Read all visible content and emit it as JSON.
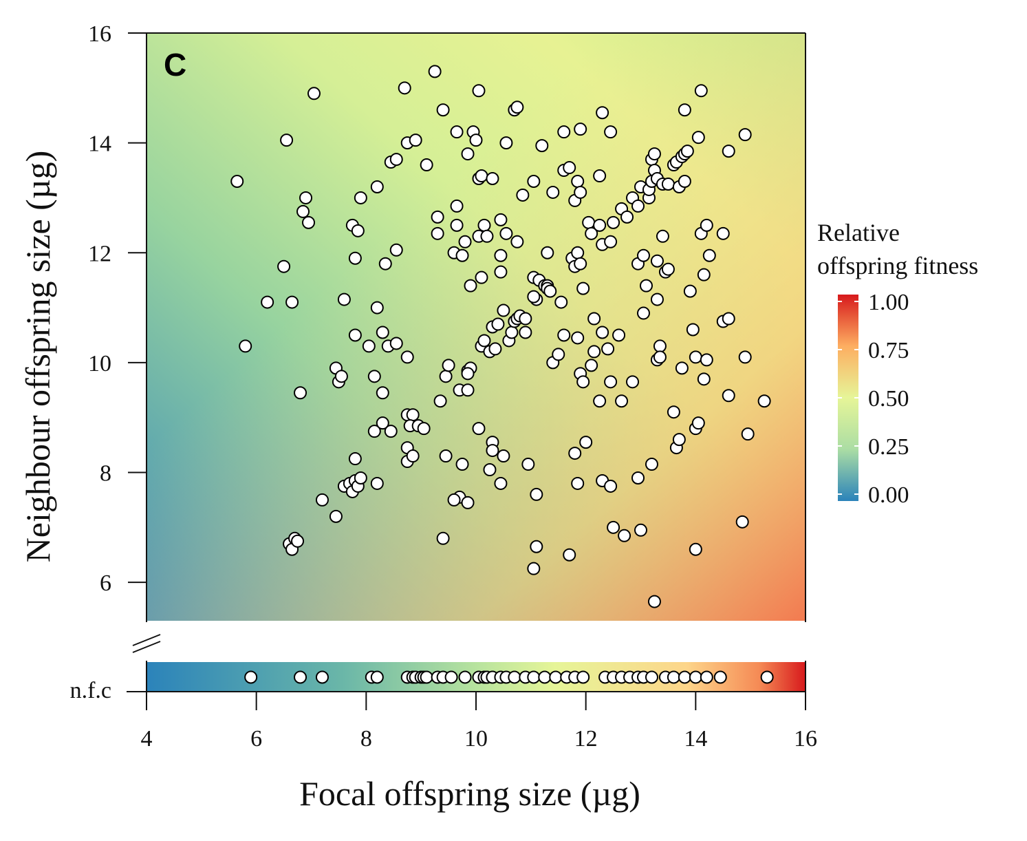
{
  "chart_data": {
    "type": "scatter",
    "panel_label": "C",
    "xlabel": "Focal offspring size (µg)",
    "ylabel": "Neighbour offspring size (µg)",
    "xlim": [
      4,
      16
    ],
    "ylim": [
      5.3,
      16
    ],
    "x_ticks": [
      "4",
      "6",
      "8",
      "10",
      "12",
      "14",
      "16"
    ],
    "y_ticks": [
      "6",
      "8",
      "10",
      "12",
      "14",
      "16"
    ],
    "nfc_label": "n.f.c",
    "legend": {
      "title_line1": "Relative",
      "title_line2": "offspring fitness",
      "ticks": [
        "1.00",
        "0.75",
        "0.50",
        "0.25",
        "0.00"
      ],
      "placement": "right",
      "colors": [
        "#2b83ba",
        "#abdda4",
        "#e6f598",
        "#fdae61",
        "#d7191c"
      ]
    },
    "grid": false,
    "points": [
      [
        5.65,
        13.3
      ],
      [
        5.8,
        10.3
      ],
      [
        6.2,
        11.1
      ],
      [
        6.5,
        11.75
      ],
      [
        6.55,
        14.05
      ],
      [
        6.65,
        11.1
      ],
      [
        6.8,
        9.45
      ],
      [
        6.85,
        12.75
      ],
      [
        6.9,
        13.0
      ],
      [
        6.95,
        12.55
      ],
      [
        7.05,
        14.9
      ],
      [
        7.2,
        7.5
      ],
      [
        6.6,
        6.7
      ],
      [
        6.65,
        6.6
      ],
      [
        6.7,
        6.8
      ],
      [
        6.75,
        6.75
      ],
      [
        7.45,
        9.9
      ],
      [
        7.5,
        9.65
      ],
      [
        7.55,
        9.75
      ],
      [
        7.6,
        11.15
      ],
      [
        7.45,
        7.2
      ],
      [
        7.6,
        7.75
      ],
      [
        7.7,
        7.8
      ],
      [
        7.75,
        7.65
      ],
      [
        7.8,
        7.85
      ],
      [
        7.85,
        7.75
      ],
      [
        7.9,
        7.9
      ],
      [
        7.8,
        8.25
      ],
      [
        7.75,
        12.5
      ],
      [
        7.8,
        11.9
      ],
      [
        7.85,
        12.4
      ],
      [
        7.9,
        13.0
      ],
      [
        7.8,
        10.5
      ],
      [
        8.05,
        10.3
      ],
      [
        8.15,
        9.75
      ],
      [
        8.2,
        11.0
      ],
      [
        8.2,
        13.2
      ],
      [
        8.3,
        10.55
      ],
      [
        8.3,
        9.45
      ],
      [
        8.35,
        11.8
      ],
      [
        8.4,
        10.3
      ],
      [
        8.45,
        13.65
      ],
      [
        8.55,
        13.7
      ],
      [
        8.55,
        12.05
      ],
      [
        8.55,
        10.35
      ],
      [
        8.15,
        8.75
      ],
      [
        8.3,
        8.9
      ],
      [
        8.45,
        8.75
      ],
      [
        8.2,
        7.8
      ],
      [
        8.7,
        15.0
      ],
      [
        8.75,
        14.0
      ],
      [
        8.9,
        14.05
      ],
      [
        8.75,
        10.1
      ],
      [
        8.75,
        9.05
      ],
      [
        8.85,
        9.05
      ],
      [
        8.8,
        8.85
      ],
      [
        8.95,
        8.85
      ],
      [
        9.05,
        8.8
      ],
      [
        8.75,
        8.45
      ],
      [
        8.75,
        8.2
      ],
      [
        8.85,
        8.3
      ],
      [
        9.1,
        13.6
      ],
      [
        9.25,
        15.3
      ],
      [
        9.3,
        12.65
      ],
      [
        9.3,
        12.35
      ],
      [
        9.35,
        9.3
      ],
      [
        9.4,
        14.6
      ],
      [
        9.45,
        9.75
      ],
      [
        9.5,
        9.95
      ],
      [
        9.45,
        8.3
      ],
      [
        9.4,
        6.8
      ],
      [
        9.6,
        12.0
      ],
      [
        9.65,
        12.5
      ],
      [
        9.65,
        12.85
      ],
      [
        9.65,
        14.2
      ],
      [
        9.75,
        11.95
      ],
      [
        9.8,
        12.2
      ],
      [
        9.85,
        9.85
      ],
      [
        9.9,
        9.9
      ],
      [
        9.7,
        9.5
      ],
      [
        9.85,
        9.5
      ],
      [
        9.85,
        9.8
      ],
      [
        9.75,
        8.15
      ],
      [
        9.7,
        7.55
      ],
      [
        9.6,
        7.5
      ],
      [
        9.85,
        7.45
      ],
      [
        9.85,
        13.8
      ],
      [
        9.95,
        14.2
      ],
      [
        10.0,
        14.05
      ],
      [
        10.05,
        14.95
      ],
      [
        10.05,
        13.35
      ],
      [
        10.1,
        13.4
      ],
      [
        10.05,
        12.3
      ],
      [
        9.9,
        11.4
      ],
      [
        10.1,
        11.55
      ],
      [
        10.05,
        8.8
      ],
      [
        10.1,
        10.3
      ],
      [
        10.15,
        10.4
      ],
      [
        10.15,
        12.5
      ],
      [
        10.2,
        12.3
      ],
      [
        10.25,
        10.2
      ],
      [
        10.3,
        10.65
      ],
      [
        10.35,
        10.25
      ],
      [
        10.4,
        10.7
      ],
      [
        10.3,
        13.35
      ],
      [
        10.25,
        8.05
      ],
      [
        10.3,
        8.55
      ],
      [
        10.3,
        8.4
      ],
      [
        10.45,
        7.8
      ],
      [
        10.45,
        12.6
      ],
      [
        10.45,
        11.95
      ],
      [
        10.45,
        11.65
      ],
      [
        10.5,
        10.95
      ],
      [
        10.55,
        12.35
      ],
      [
        10.6,
        10.4
      ],
      [
        10.65,
        10.55
      ],
      [
        10.7,
        10.75
      ],
      [
        10.75,
        10.8
      ],
      [
        10.55,
        14.0
      ],
      [
        10.5,
        8.3
      ],
      [
        10.7,
        14.6
      ],
      [
        10.75,
        14.65
      ],
      [
        10.75,
        12.2
      ],
      [
        10.8,
        10.85
      ],
      [
        10.9,
        10.8
      ],
      [
        10.9,
        10.55
      ],
      [
        10.85,
        13.05
      ],
      [
        10.95,
        8.15
      ],
      [
        11.05,
        13.3
      ],
      [
        11.05,
        11.55
      ],
      [
        11.1,
        11.15
      ],
      [
        11.05,
        11.2
      ],
      [
        11.15,
        11.5
      ],
      [
        11.25,
        11.4
      ],
      [
        11.3,
        11.4
      ],
      [
        11.3,
        11.35
      ],
      [
        11.35,
        11.3
      ],
      [
        11.3,
        12.0
      ],
      [
        11.1,
        7.6
      ],
      [
        11.05,
        6.25
      ],
      [
        11.1,
        6.65
      ],
      [
        11.2,
        13.95
      ],
      [
        11.4,
        13.1
      ],
      [
        11.4,
        10.0
      ],
      [
        11.5,
        10.15
      ],
      [
        11.6,
        14.2
      ],
      [
        11.6,
        13.5
      ],
      [
        11.7,
        13.55
      ],
      [
        11.75,
        11.9
      ],
      [
        11.8,
        11.75
      ],
      [
        11.55,
        11.1
      ],
      [
        11.6,
        10.5
      ],
      [
        11.7,
        6.5
      ],
      [
        11.8,
        8.35
      ],
      [
        11.8,
        12.95
      ],
      [
        11.85,
        13.3
      ],
      [
        11.85,
        12.0
      ],
      [
        11.9,
        14.25
      ],
      [
        11.9,
        13.1
      ],
      [
        11.9,
        11.8
      ],
      [
        11.95,
        11.35
      ],
      [
        11.85,
        10.45
      ],
      [
        11.9,
        9.8
      ],
      [
        11.95,
        9.65
      ],
      [
        12.0,
        8.55
      ],
      [
        11.85,
        7.8
      ],
      [
        12.05,
        12.55
      ],
      [
        12.1,
        12.35
      ],
      [
        12.15,
        10.8
      ],
      [
        12.1,
        9.95
      ],
      [
        12.15,
        10.2
      ],
      [
        12.25,
        12.5
      ],
      [
        12.25,
        13.4
      ],
      [
        12.25,
        9.3
      ],
      [
        12.3,
        14.55
      ],
      [
        12.3,
        12.15
      ],
      [
        12.3,
        10.55
      ],
      [
        12.3,
        7.85
      ],
      [
        12.45,
        14.2
      ],
      [
        12.4,
        10.25
      ],
      [
        12.45,
        9.65
      ],
      [
        12.45,
        7.75
      ],
      [
        12.45,
        12.2
      ],
      [
        12.5,
        12.55
      ],
      [
        12.5,
        7.0
      ],
      [
        12.6,
        10.5
      ],
      [
        12.65,
        9.3
      ],
      [
        12.7,
        6.85
      ],
      [
        12.65,
        12.8
      ],
      [
        12.75,
        12.65
      ],
      [
        12.85,
        13.0
      ],
      [
        12.85,
        9.65
      ],
      [
        12.95,
        12.85
      ],
      [
        12.95,
        7.9
      ],
      [
        12.95,
        11.8
      ],
      [
        13.0,
        13.2
      ],
      [
        13.0,
        6.95
      ],
      [
        13.05,
        11.95
      ],
      [
        13.05,
        10.9
      ],
      [
        13.1,
        11.4
      ],
      [
        13.15,
        13.0
      ],
      [
        13.15,
        13.15
      ],
      [
        13.2,
        13.3
      ],
      [
        13.2,
        13.7
      ],
      [
        13.25,
        13.5
      ],
      [
        13.3,
        13.35
      ],
      [
        13.25,
        13.8
      ],
      [
        13.3,
        11.85
      ],
      [
        13.3,
        11.15
      ],
      [
        13.3,
        10.05
      ],
      [
        13.35,
        10.3
      ],
      [
        13.35,
        10.1
      ],
      [
        13.2,
        8.15
      ],
      [
        13.25,
        5.65
      ],
      [
        13.4,
        13.25
      ],
      [
        13.4,
        12.3
      ],
      [
        13.45,
        11.65
      ],
      [
        13.5,
        11.7
      ],
      [
        13.5,
        13.25
      ],
      [
        13.6,
        13.6
      ],
      [
        13.6,
        9.1
      ],
      [
        13.65,
        8.45
      ],
      [
        13.65,
        13.65
      ],
      [
        13.7,
        13.2
      ],
      [
        13.7,
        8.6
      ],
      [
        13.75,
        13.75
      ],
      [
        13.8,
        13.8
      ],
      [
        13.8,
        13.3
      ],
      [
        13.75,
        9.9
      ],
      [
        13.8,
        14.6
      ],
      [
        13.85,
        13.85
      ],
      [
        13.9,
        11.3
      ],
      [
        13.95,
        10.6
      ],
      [
        14.0,
        10.1
      ],
      [
        14.0,
        8.8
      ],
      [
        14.05,
        8.9
      ],
      [
        14.0,
        6.6
      ],
      [
        14.05,
        14.1
      ],
      [
        14.1,
        14.95
      ],
      [
        14.1,
        12.35
      ],
      [
        14.15,
        11.6
      ],
      [
        14.15,
        9.7
      ],
      [
        14.2,
        10.05
      ],
      [
        14.2,
        12.5
      ],
      [
        14.25,
        11.95
      ],
      [
        14.5,
        12.35
      ],
      [
        14.5,
        10.75
      ],
      [
        14.6,
        10.8
      ],
      [
        14.6,
        13.85
      ],
      [
        14.6,
        9.4
      ],
      [
        14.85,
        7.1
      ],
      [
        14.9,
        10.1
      ],
      [
        14.9,
        14.15
      ],
      [
        14.95,
        8.7
      ],
      [
        15.25,
        9.3
      ]
    ],
    "nfc_points": [
      5.9,
      6.8,
      7.2,
      8.1,
      8.2,
      8.75,
      8.85,
      8.9,
      9.0,
      9.05,
      9.1,
      9.3,
      9.4,
      9.55,
      9.8,
      10.05,
      10.15,
      10.2,
      10.3,
      10.45,
      10.55,
      10.7,
      10.9,
      11.05,
      11.25,
      11.45,
      11.65,
      11.8,
      11.95,
      12.35,
      12.5,
      12.65,
      12.8,
      12.95,
      13.05,
      13.2,
      13.45,
      13.6,
      13.8,
      14.0,
      14.2,
      14.45,
      15.3
    ]
  }
}
